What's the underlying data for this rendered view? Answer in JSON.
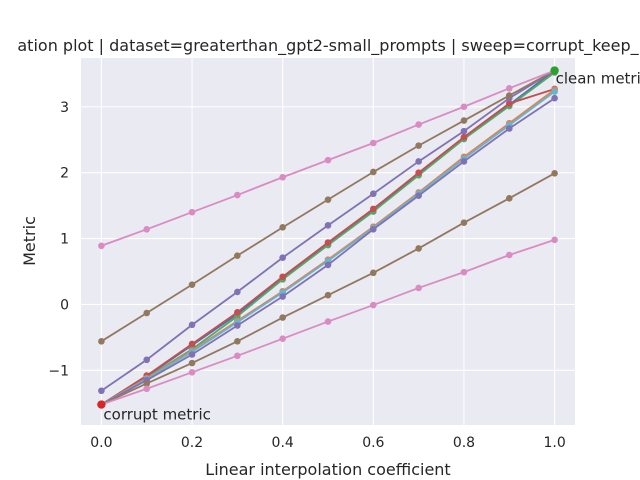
{
  "chart_data": {
    "type": "line",
    "title": "ation plot | dataset=greaterthan_gpt2-small_prompts | sweep=corrupt_keep_",
    "xlabel": "Linear interpolation coefficient",
    "ylabel": "Metric",
    "xlim": [
      -0.045,
      1.045
    ],
    "ylim": [
      -1.83,
      3.74
    ],
    "grid": true,
    "xticks": [
      0.0,
      0.2,
      0.4,
      0.6,
      0.8,
      1.0
    ],
    "xtick_labels": [
      "0.0",
      "0.2",
      "0.4",
      "0.6",
      "0.8",
      "1.0"
    ],
    "yticks": [
      -1,
      0,
      1,
      2,
      3
    ],
    "ytick_labels": [
      "−1",
      "0",
      "1",
      "2",
      "3"
    ],
    "x": [
      0.0,
      0.1,
      0.2,
      0.3,
      0.4,
      0.5,
      0.6,
      0.7,
      0.8,
      0.9,
      1.0
    ],
    "series": [
      {
        "color": "#4c72b0",
        "values": [
          -1.52,
          -1.09,
          -0.62,
          -0.15,
          0.41,
          0.92,
          1.43,
          1.98,
          2.53,
          3.03,
          3.55
        ]
      },
      {
        "color": "#55a868",
        "values": [
          -1.52,
          -1.11,
          -0.68,
          -0.18,
          0.38,
          0.9,
          1.41,
          1.96,
          2.51,
          3.01,
          3.52
        ]
      },
      {
        "color": "#c44e52",
        "values": [
          -1.52,
          -1.08,
          -0.6,
          -0.12,
          0.42,
          0.94,
          1.45,
          2.0,
          2.54,
          3.05,
          3.27
        ]
      },
      {
        "color": "#dd8452",
        "values": [
          -1.52,
          -1.12,
          -0.7,
          -0.25,
          0.2,
          0.68,
          1.18,
          1.7,
          2.24,
          2.75,
          3.26
        ]
      },
      {
        "color": "#64b5cd",
        "values": [
          -1.52,
          -1.13,
          -0.72,
          -0.27,
          0.18,
          0.66,
          1.16,
          1.68,
          2.21,
          2.72,
          3.23
        ]
      },
      {
        "color": "#8172b3",
        "values": [
          -1.52,
          -1.15,
          -0.76,
          -0.32,
          0.12,
          0.6,
          1.14,
          1.65,
          2.17,
          2.67,
          3.13
        ]
      },
      {
        "color": "#8172b3",
        "values": [
          -1.31,
          -0.84,
          -0.31,
          0.19,
          0.71,
          1.2,
          1.68,
          2.17,
          2.63,
          3.13,
          3.55
        ]
      },
      {
        "color": "#937860",
        "values": [
          -0.56,
          -0.13,
          0.3,
          0.74,
          1.17,
          1.59,
          2.01,
          2.41,
          2.79,
          3.17,
          3.55
        ]
      },
      {
        "color": "#937860",
        "values": [
          -1.52,
          -1.2,
          -0.89,
          -0.56,
          -0.2,
          0.14,
          0.48,
          0.85,
          1.24,
          1.61,
          1.99
        ]
      },
      {
        "color": "#da8bc3",
        "values": [
          0.89,
          1.14,
          1.4,
          1.66,
          1.93,
          2.19,
          2.45,
          2.73,
          3.0,
          3.28,
          3.55
        ]
      },
      {
        "color": "#da8bc3",
        "values": [
          -1.52,
          -1.28,
          -1.03,
          -0.78,
          -0.52,
          -0.26,
          -0.01,
          0.25,
          0.49,
          0.75,
          0.98
        ]
      }
    ],
    "annotations": [
      {
        "text": "clean metric",
        "x": 1.0,
        "y": 3.55,
        "marker_color": "#2ca02c"
      },
      {
        "text": "corrupt metric",
        "x": 0.0,
        "y": -1.52,
        "marker_color": "#d62728"
      }
    ]
  }
}
